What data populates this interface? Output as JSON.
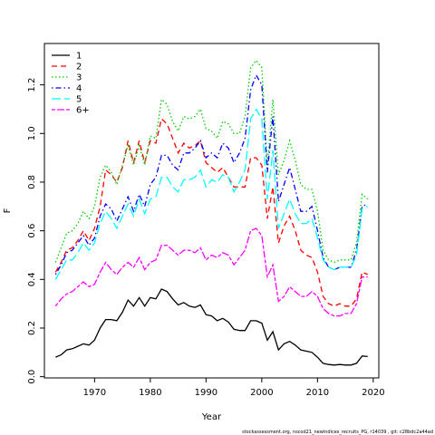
{
  "chart_data": {
    "type": "line",
    "xlabel": "Year",
    "ylabel": "F",
    "xlim": [
      1961,
      2021
    ],
    "ylim": [
      -0.005,
      1.37
    ],
    "xticks": [
      "1970",
      "1980",
      "1990",
      "2000",
      "2010",
      "2020"
    ],
    "yticks": [
      "0.0",
      "0.2",
      "0.4",
      "0.6",
      "0.8",
      "1.0",
      "1.2"
    ],
    "legend_position": "top-left",
    "footnote": "stockassessment.org,  nscod21_newindices_recruits_PG,  r14039 ,  git: c28bdc2a44ad",
    "x": [
      1963,
      1964,
      1965,
      1966,
      1967,
      1968,
      1969,
      1970,
      1971,
      1972,
      1973,
      1974,
      1975,
      1976,
      1977,
      1978,
      1979,
      1980,
      1981,
      1982,
      1983,
      1984,
      1985,
      1986,
      1987,
      1988,
      1989,
      1990,
      1991,
      1992,
      1993,
      1994,
      1995,
      1996,
      1997,
      1998,
      1999,
      2000,
      2001,
      2002,
      2003,
      2004,
      2005,
      2006,
      2007,
      2008,
      2009,
      2010,
      2011,
      2012,
      2013,
      2014,
      2015,
      2016,
      2017,
      2018,
      2019
    ],
    "series": [
      {
        "name": "1",
        "color": "#000000",
        "dash": "solid",
        "values": [
          0.08,
          0.09,
          0.11,
          0.115,
          0.125,
          0.135,
          0.13,
          0.15,
          0.2,
          0.235,
          0.235,
          0.23,
          0.265,
          0.315,
          0.29,
          0.325,
          0.29,
          0.325,
          0.32,
          0.36,
          0.35,
          0.32,
          0.295,
          0.305,
          0.29,
          0.285,
          0.295,
          0.255,
          0.25,
          0.23,
          0.24,
          0.225,
          0.195,
          0.19,
          0.19,
          0.23,
          0.23,
          0.22,
          0.15,
          0.185,
          0.11,
          0.135,
          0.145,
          0.13,
          0.11,
          0.105,
          0.1,
          0.08,
          0.055,
          0.05,
          0.048,
          0.05,
          0.048,
          0.048,
          0.055,
          0.085,
          0.083
        ]
      },
      {
        "name": "2",
        "color": "#ff0000",
        "dash": "dashed",
        "values": [
          0.43,
          0.47,
          0.52,
          0.53,
          0.56,
          0.6,
          0.56,
          0.61,
          0.7,
          0.85,
          0.83,
          0.8,
          0.86,
          0.97,
          0.88,
          0.97,
          0.88,
          0.97,
          0.96,
          1.06,
          1.04,
          0.98,
          0.92,
          0.96,
          0.94,
          0.95,
          0.97,
          0.88,
          0.86,
          0.84,
          0.86,
          0.82,
          0.78,
          0.78,
          0.78,
          0.9,
          0.9,
          0.87,
          0.65,
          0.78,
          0.55,
          0.62,
          0.66,
          0.6,
          0.52,
          0.5,
          0.49,
          0.43,
          0.33,
          0.3,
          0.29,
          0.3,
          0.29,
          0.29,
          0.32,
          0.43,
          0.42
        ]
      },
      {
        "name": "3",
        "color": "#00cd00",
        "dash": "dotted",
        "values": [
          0.47,
          0.53,
          0.59,
          0.6,
          0.63,
          0.68,
          0.65,
          0.7,
          0.82,
          0.87,
          0.84,
          0.79,
          0.87,
          0.95,
          0.87,
          0.95,
          0.87,
          0.99,
          0.98,
          1.14,
          1.12,
          1.05,
          1.01,
          1.07,
          1.06,
          1.07,
          1.1,
          1.02,
          1.01,
          0.98,
          1.05,
          1.04,
          1.0,
          1.0,
          1.07,
          1.27,
          1.3,
          1.27,
          0.87,
          1.14,
          0.83,
          0.89,
          0.97,
          0.89,
          0.79,
          0.77,
          0.77,
          0.68,
          0.52,
          0.48,
          0.47,
          0.48,
          0.48,
          0.48,
          0.55,
          0.75,
          0.73
        ]
      },
      {
        "name": "4",
        "color": "#0000ff",
        "dash": "dashdot",
        "values": [
          0.42,
          0.46,
          0.51,
          0.52,
          0.55,
          0.58,
          0.54,
          0.57,
          0.66,
          0.71,
          0.69,
          0.64,
          0.69,
          0.74,
          0.68,
          0.75,
          0.7,
          0.79,
          0.82,
          0.91,
          0.91,
          0.87,
          0.85,
          0.92,
          0.92,
          0.94,
          0.97,
          0.9,
          0.92,
          0.9,
          0.96,
          0.94,
          0.88,
          0.92,
          0.98,
          1.18,
          1.24,
          1.2,
          0.84,
          1.07,
          0.72,
          0.79,
          0.86,
          0.77,
          0.68,
          0.68,
          0.7,
          0.6,
          0.49,
          0.45,
          0.44,
          0.45,
          0.45,
          0.45,
          0.52,
          0.7,
          0.71
        ]
      },
      {
        "name": "5",
        "color": "#00ffff",
        "dash": "longdash",
        "values": [
          0.4,
          0.44,
          0.48,
          0.48,
          0.51,
          0.55,
          0.52,
          0.55,
          0.63,
          0.68,
          0.65,
          0.61,
          0.66,
          0.71,
          0.66,
          0.73,
          0.67,
          0.73,
          0.74,
          0.82,
          0.82,
          0.78,
          0.76,
          0.81,
          0.81,
          0.82,
          0.85,
          0.78,
          0.81,
          0.8,
          0.83,
          0.82,
          0.76,
          0.8,
          0.85,
          1.06,
          1.1,
          1.06,
          0.73,
          0.93,
          0.61,
          0.67,
          0.73,
          0.67,
          0.63,
          0.63,
          0.65,
          0.57,
          0.48,
          0.45,
          0.44,
          0.45,
          0.45,
          0.45,
          0.5,
          0.69,
          0.7
        ]
      },
      {
        "name": "6+",
        "color": "#ff00ff",
        "dash": "twodash",
        "values": [
          0.29,
          0.32,
          0.34,
          0.35,
          0.37,
          0.39,
          0.37,
          0.38,
          0.43,
          0.47,
          0.44,
          0.42,
          0.45,
          0.47,
          0.45,
          0.49,
          0.44,
          0.47,
          0.48,
          0.54,
          0.54,
          0.52,
          0.5,
          0.52,
          0.52,
          0.51,
          0.53,
          0.48,
          0.5,
          0.49,
          0.51,
          0.5,
          0.46,
          0.49,
          0.52,
          0.6,
          0.61,
          0.58,
          0.41,
          0.46,
          0.31,
          0.33,
          0.37,
          0.35,
          0.33,
          0.33,
          0.35,
          0.33,
          0.28,
          0.26,
          0.25,
          0.25,
          0.26,
          0.26,
          0.3,
          0.41,
          0.41
        ]
      }
    ]
  }
}
